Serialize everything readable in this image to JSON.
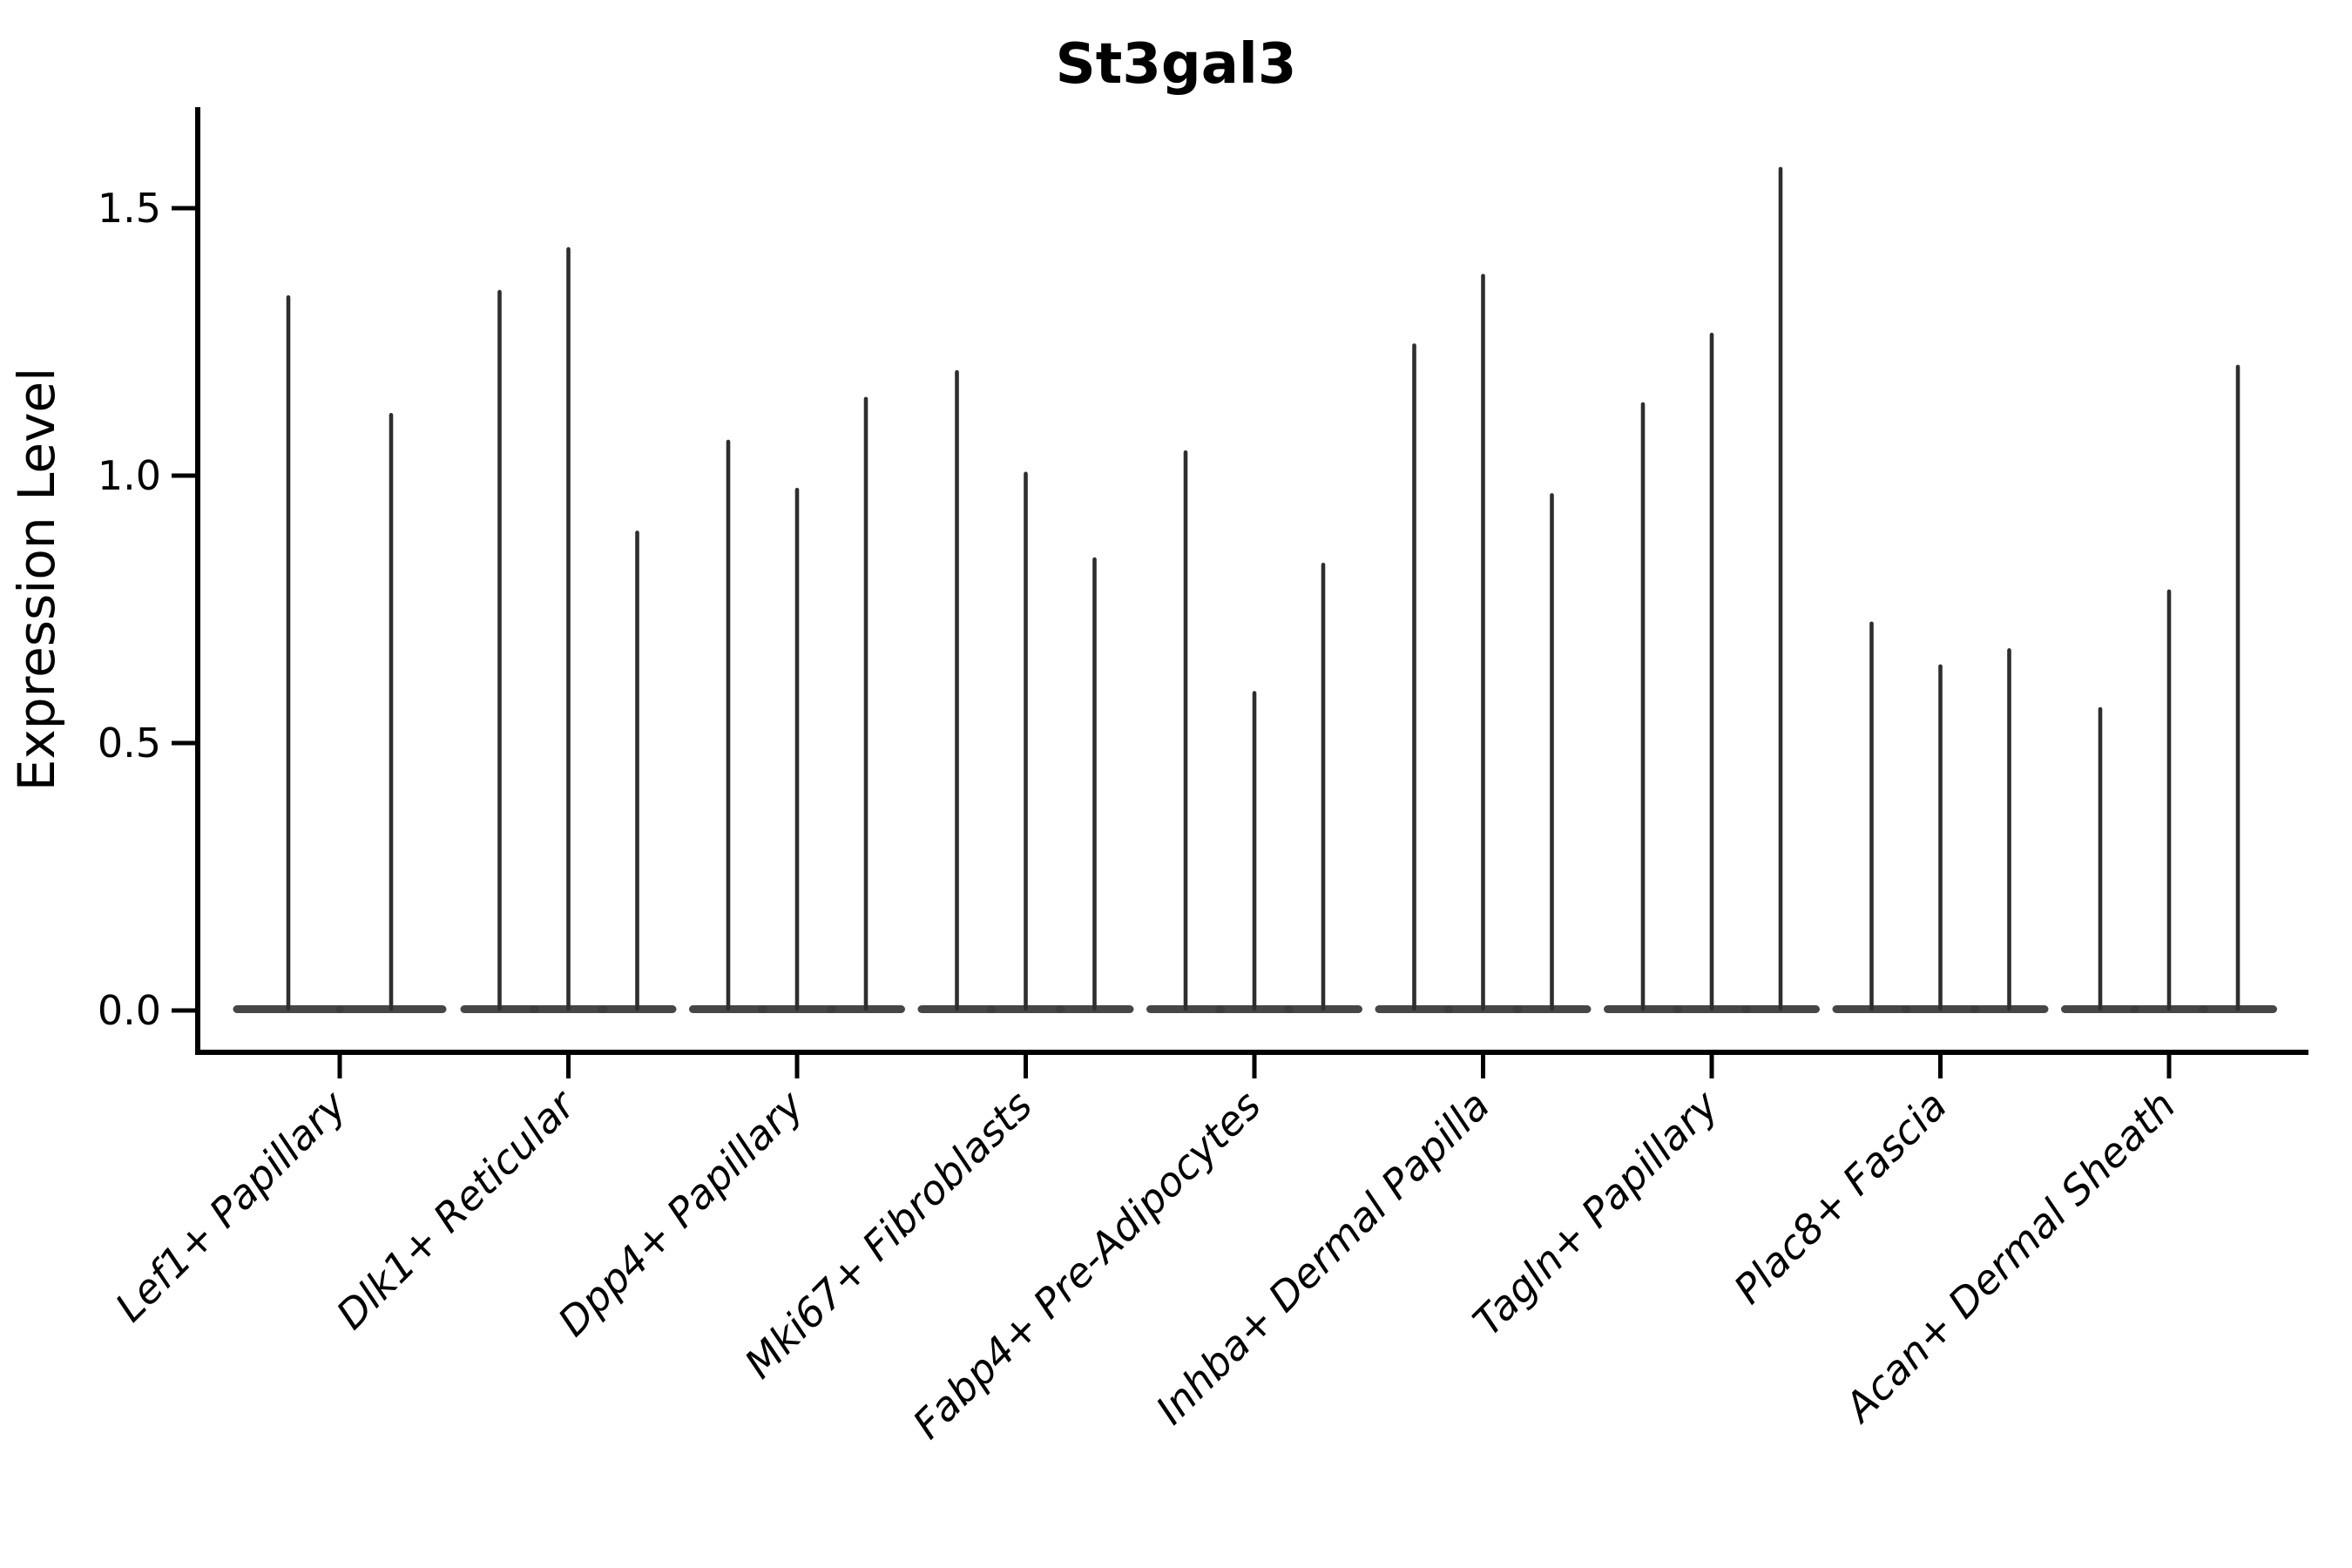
{
  "title": "St3gal3",
  "y_axis": {
    "label": "Expression Level",
    "tick_labels": [
      "0.0",
      "0.5",
      "1.0",
      "1.5"
    ]
  },
  "x_axis": {
    "label": "",
    "tick_labels": [
      "Lef1+ Papillary",
      "Dlk1+ Reticular",
      "Dpp4+ Papillary",
      "Mki67+ Fibroblasts",
      "Fabp4+ Pre-Adipocytes",
      "Inhba+ Dermal Papilla",
      "Tagln+ Papillary",
      "Plac8+ Fascia",
      "Acan+ Dermal Sheath"
    ]
  },
  "colors": {
    "violin_stroke": "#2e2e2e",
    "violin_base": "#3d3d3d",
    "axis": "#000000",
    "background": "#ffffff"
  },
  "chart_data": {
    "type": "violin",
    "title": "St3gal3",
    "xlabel": "",
    "ylabel": "Expression Level",
    "yticks": [
      0.0,
      0.5,
      1.0,
      1.5
    ],
    "ylim": [
      -0.08,
      1.69
    ],
    "grid": false,
    "legend": null,
    "orientation": "vertical",
    "shape_note": "Each violin is collapsed at 0 (flat wide base) with a thin vertical spike reaching the maximum expression value",
    "categories": [
      "Lef1+ Papillary",
      "Dlk1+ Reticular",
      "Dpp4+ Papillary",
      "Mki67+ Fibroblasts",
      "Fabp4+ Pre-Adipocytes",
      "Inhba+ Dermal Papilla",
      "Tagln+ Papillary",
      "Plac8+ Fascia",
      "Acan+ Dermal Sheath"
    ],
    "violins": [
      {
        "category": "Lef1+ Papillary",
        "spike_max_values": [
          1.34,
          1.12
        ]
      },
      {
        "category": "Dlk1+ Reticular",
        "spike_max_values": [
          1.35,
          1.43,
          0.9
        ]
      },
      {
        "category": "Dpp4+ Papillary",
        "spike_max_values": [
          1.07,
          0.98,
          1.15
        ]
      },
      {
        "category": "Mki67+ Fibroblasts",
        "spike_max_values": [
          1.2,
          1.01,
          0.85
        ]
      },
      {
        "category": "Fabp4+ Pre-Adipocytes",
        "spike_max_values": [
          1.05,
          0.6,
          0.84
        ]
      },
      {
        "category": "Inhba+ Dermal Papilla",
        "spike_max_values": [
          1.25,
          1.38,
          0.97
        ]
      },
      {
        "category": "Tagln+ Papillary",
        "spike_max_values": [
          1.14,
          1.27,
          1.58
        ]
      },
      {
        "category": "Plac8+ Fascia",
        "spike_max_values": [
          0.73,
          0.65,
          0.68
        ]
      },
      {
        "category": "Acan+ Dermal Sheath",
        "spike_max_values": [
          0.57,
          0.79,
          1.21
        ]
      }
    ]
  }
}
